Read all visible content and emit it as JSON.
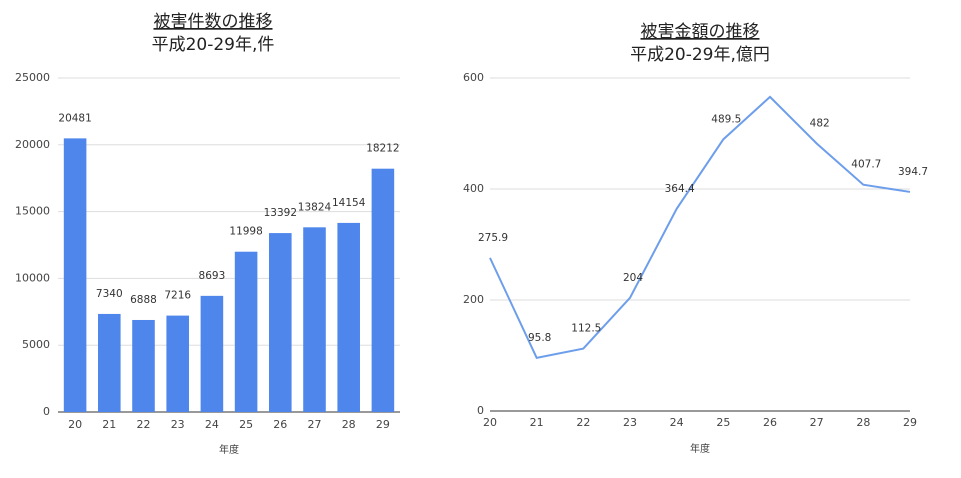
{
  "chart_data": [
    {
      "type": "bar",
      "title": "被害件数の推移",
      "subtitle": "平成20-29年,件",
      "x_label": "年度",
      "categories": [
        "20",
        "21",
        "22",
        "23",
        "24",
        "25",
        "26",
        "27",
        "28",
        "29"
      ],
      "values": [
        20481,
        7340,
        6888,
        7216,
        8693,
        11998,
        13392,
        13824,
        14154,
        18212
      ],
      "color": "#4f86ec",
      "ylim": [
        0,
        25000
      ],
      "yticks": [
        0,
        5000,
        10000,
        15000,
        20000,
        25000
      ],
      "grid": true
    },
    {
      "type": "line",
      "title": "被害金額の推移",
      "subtitle": "平成20-29年,億円",
      "x_label": "年度",
      "categories": [
        "20",
        "21",
        "22",
        "23",
        "24",
        "25",
        "26",
        "27",
        "28",
        "29"
      ],
      "values": [
        275.9,
        95.8,
        112.5,
        204,
        364.4,
        489.5,
        566,
        482,
        407.7,
        394.7
      ],
      "value_labels": [
        "275.9",
        "95.8",
        "112.5",
        "204",
        "364.4",
        "489.5",
        null,
        "482",
        "407.7",
        "394.7"
      ],
      "color": "#6d9eeb",
      "ylim": [
        0,
        600
      ],
      "yticks": [
        0,
        200,
        400,
        600
      ],
      "grid": true
    }
  ]
}
